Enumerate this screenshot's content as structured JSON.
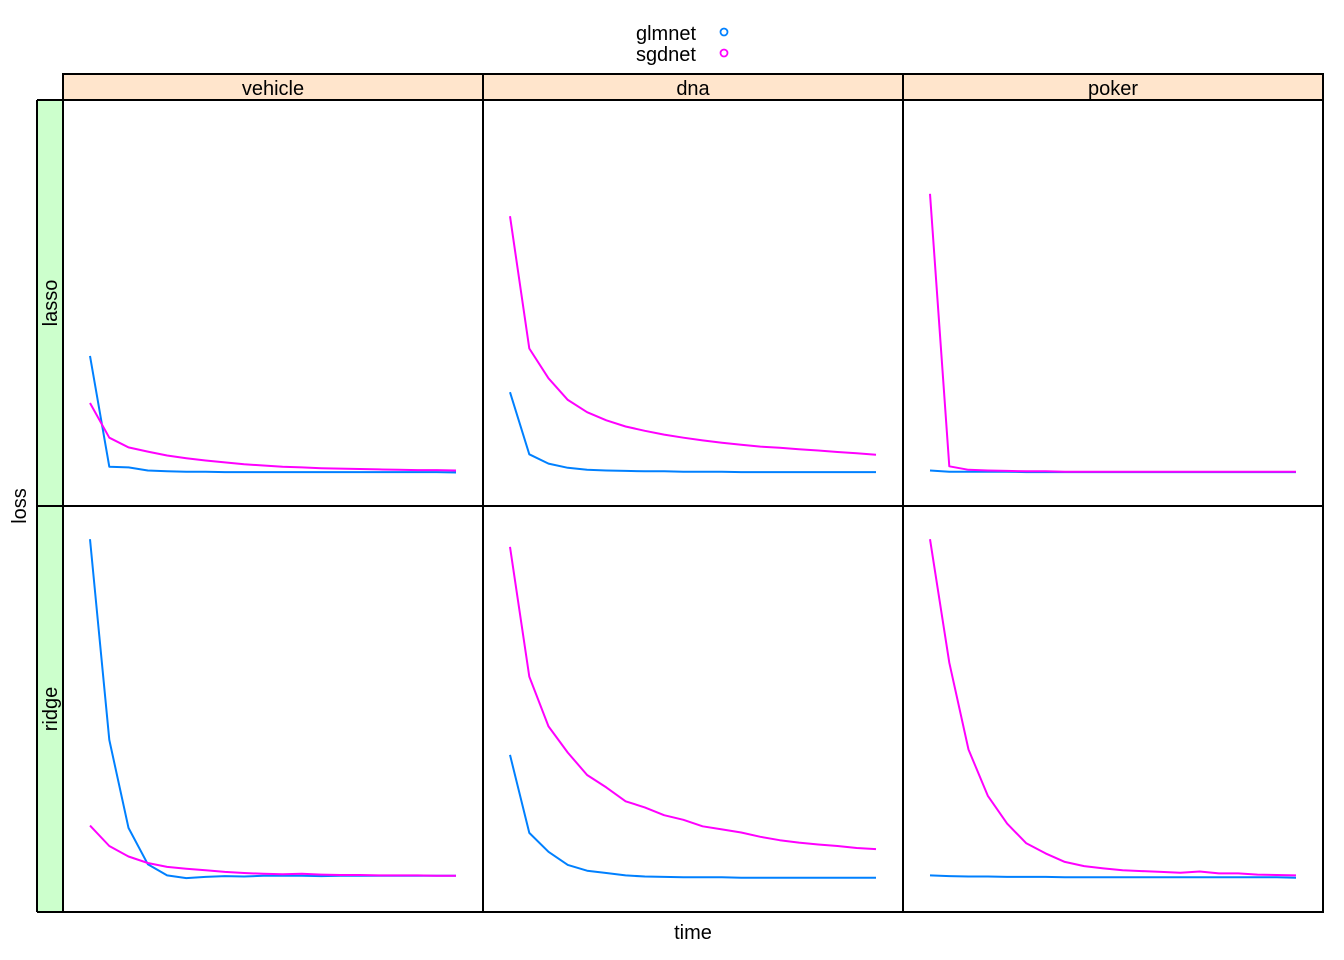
{
  "chart_data": {
    "type": "line",
    "xlabel": "time",
    "ylabel": "loss",
    "legend": {
      "placement": "top-center",
      "entries": [
        {
          "name": "glmnet",
          "color": "#0080ff"
        },
        {
          "name": "sgdnet",
          "color": "#ff00ff"
        }
      ]
    },
    "column_strips": [
      "vehicle",
      "dna",
      "poker"
    ],
    "row_strips": [
      "lasso",
      "ridge"
    ],
    "strip_colors": {
      "column": "#ffe5cc",
      "row": "#ccffcc"
    },
    "grid": false,
    "x_ticks_shown": false,
    "y_ticks_shown": false,
    "ylim": [
      0,
      1
    ],
    "panels": [
      {
        "column": "vehicle",
        "row": "lasso",
        "series": [
          {
            "name": "glmnet",
            "x": [
              1,
              2,
              3,
              4,
              5,
              6,
              7,
              8,
              9,
              10,
              11,
              12,
              13,
              14,
              15,
              16,
              17,
              18,
              19,
              20
            ],
            "values": [
              0.363,
              0.076,
              0.074,
              0.066,
              0.064,
              0.063,
              0.063,
              0.062,
              0.062,
              0.062,
              0.062,
              0.062,
              0.062,
              0.062,
              0.062,
              0.062,
              0.062,
              0.062,
              0.062,
              0.061
            ]
          },
          {
            "name": "sgdnet",
            "x": [
              1,
              2,
              3,
              4,
              5,
              6,
              7,
              8,
              9,
              10,
              11,
              12,
              13,
              14,
              15,
              16,
              17,
              18,
              19,
              20
            ],
            "values": [
              0.241,
              0.151,
              0.126,
              0.115,
              0.105,
              0.098,
              0.092,
              0.087,
              0.082,
              0.079,
              0.076,
              0.074,
              0.072,
              0.071,
              0.07,
              0.069,
              0.068,
              0.067,
              0.067,
              0.066
            ]
          }
        ]
      },
      {
        "column": "dna",
        "row": "lasso",
        "series": [
          {
            "name": "glmnet",
            "x": [
              1,
              2,
              3,
              4,
              5,
              6,
              7,
              8,
              9,
              10,
              11,
              12,
              13,
              14,
              15,
              16,
              17,
              18,
              19,
              20
            ],
            "values": [
              0.269,
              0.108,
              0.084,
              0.073,
              0.068,
              0.066,
              0.065,
              0.064,
              0.064,
              0.063,
              0.063,
              0.063,
              0.062,
              0.062,
              0.062,
              0.062,
              0.062,
              0.062,
              0.062,
              0.062
            ]
          },
          {
            "name": "sgdnet",
            "x": [
              1,
              2,
              3,
              4,
              5,
              6,
              7,
              8,
              9,
              10,
              11,
              12,
              13,
              14,
              15,
              16,
              17,
              18,
              19,
              20
            ],
            "values": [
              0.725,
              0.382,
              0.305,
              0.249,
              0.217,
              0.196,
              0.18,
              0.169,
              0.159,
              0.151,
              0.144,
              0.138,
              0.133,
              0.128,
              0.125,
              0.121,
              0.118,
              0.114,
              0.111,
              0.107
            ]
          }
        ]
      },
      {
        "column": "poker",
        "row": "lasso",
        "series": [
          {
            "name": "glmnet",
            "x": [
              1,
              2,
              3,
              4,
              5,
              6,
              7,
              8,
              9,
              10,
              11,
              12,
              13,
              14,
              15,
              16,
              17,
              18,
              19,
              20
            ],
            "values": [
              0.066,
              0.063,
              0.063,
              0.063,
              0.063,
              0.062,
              0.062,
              0.062,
              0.062,
              0.062,
              0.062,
              0.062,
              0.062,
              0.062,
              0.062,
              0.062,
              0.062,
              0.062,
              0.062,
              0.062
            ]
          },
          {
            "name": "sgdnet",
            "x": [
              1,
              2,
              3,
              4,
              5,
              6,
              7,
              8,
              9,
              10,
              11,
              12,
              13,
              14,
              15,
              16,
              17,
              18,
              19,
              20
            ],
            "values": [
              0.783,
              0.077,
              0.068,
              0.066,
              0.065,
              0.064,
              0.064,
              0.063,
              0.063,
              0.063,
              0.063,
              0.063,
              0.063,
              0.063,
              0.063,
              0.063,
              0.063,
              0.063,
              0.063,
              0.063
            ]
          }
        ]
      },
      {
        "column": "vehicle",
        "row": "ridge",
        "series": [
          {
            "name": "glmnet",
            "x": [
              1,
              2,
              3,
              4,
              5,
              6,
              7,
              8,
              9,
              10,
              11,
              12,
              13,
              14,
              15,
              16,
              17,
              18,
              19,
              20
            ],
            "values": [
              0.94,
              0.42,
              0.192,
              0.098,
              0.069,
              0.062,
              0.065,
              0.067,
              0.066,
              0.068,
              0.068,
              0.068,
              0.067,
              0.068,
              0.068,
              0.068,
              0.068,
              0.068,
              0.068,
              0.068
            ]
          },
          {
            "name": "sgdnet",
            "x": [
              1,
              2,
              3,
              4,
              5,
              6,
              7,
              8,
              9,
              10,
              11,
              12,
              13,
              14,
              15,
              16,
              17,
              18,
              19,
              20
            ],
            "values": [
              0.198,
              0.145,
              0.118,
              0.101,
              0.091,
              0.086,
              0.082,
              0.078,
              0.075,
              0.073,
              0.072,
              0.073,
              0.071,
              0.07,
              0.07,
              0.069,
              0.069,
              0.069,
              0.068,
              0.068
            ]
          }
        ]
      },
      {
        "column": "dna",
        "row": "ridge",
        "series": [
          {
            "name": "glmnet",
            "x": [
              1,
              2,
              3,
              4,
              5,
              6,
              7,
              8,
              9,
              10,
              11,
              12,
              13,
              14,
              15,
              16,
              17,
              18,
              19,
              20
            ],
            "values": [
              0.381,
              0.179,
              0.13,
              0.096,
              0.081,
              0.075,
              0.069,
              0.066,
              0.065,
              0.064,
              0.064,
              0.064,
              0.063,
              0.063,
              0.063,
              0.063,
              0.063,
              0.063,
              0.063,
              0.063
            ]
          },
          {
            "name": "sgdnet",
            "x": [
              1,
              2,
              3,
              4,
              5,
              6,
              7,
              8,
              9,
              10,
              11,
              12,
              13,
              14,
              15,
              16,
              17,
              18,
              19,
              20
            ],
            "values": [
              0.92,
              0.584,
              0.455,
              0.387,
              0.329,
              0.297,
              0.261,
              0.245,
              0.225,
              0.213,
              0.196,
              0.188,
              0.18,
              0.169,
              0.16,
              0.154,
              0.149,
              0.145,
              0.14,
              0.137
            ]
          }
        ]
      },
      {
        "column": "poker",
        "row": "ridge",
        "series": [
          {
            "name": "glmnet",
            "x": [
              1,
              2,
              3,
              4,
              5,
              6,
              7,
              8,
              9,
              10,
              11,
              12,
              13,
              14,
              15,
              16,
              17,
              18,
              19,
              20
            ],
            "values": [
              0.069,
              0.067,
              0.066,
              0.066,
              0.065,
              0.065,
              0.065,
              0.064,
              0.064,
              0.064,
              0.064,
              0.064,
              0.064,
              0.064,
              0.064,
              0.064,
              0.064,
              0.064,
              0.064,
              0.063
            ]
          },
          {
            "name": "sgdnet",
            "x": [
              1,
              2,
              3,
              4,
              5,
              6,
              7,
              8,
              9,
              10,
              11,
              12,
              13,
              14,
              15,
              16,
              17,
              18,
              19,
              20
            ],
            "values": [
              0.94,
              0.62,
              0.395,
              0.275,
              0.203,
              0.152,
              0.126,
              0.104,
              0.093,
              0.087,
              0.082,
              0.08,
              0.078,
              0.076,
              0.079,
              0.074,
              0.074,
              0.071,
              0.07,
              0.069
            ]
          }
        ]
      }
    ]
  }
}
